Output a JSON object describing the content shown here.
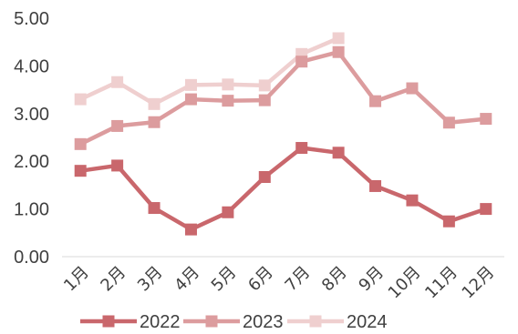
{
  "chart_data": {
    "type": "line",
    "title": "",
    "xlabel": "",
    "ylabel": "",
    "categories": [
      "1月",
      "2月",
      "3月",
      "4月",
      "5月",
      "6月",
      "7月",
      "8月",
      "9月",
      "10月",
      "11月",
      "12月"
    ],
    "y_ticks": [
      "0.00",
      "1.00",
      "2.00",
      "3.00",
      "4.00",
      "5.00"
    ],
    "ylim": [
      0,
      5
    ],
    "grid": false,
    "legend_position": "bottom",
    "series": [
      {
        "name": "2022",
        "color": "#c9676c",
        "values": [
          1.8,
          1.91,
          1.02,
          0.57,
          0.93,
          1.67,
          2.28,
          2.18,
          1.48,
          1.18,
          0.74,
          1.0
        ]
      },
      {
        "name": "2023",
        "color": "#dc9c9e",
        "values": [
          2.36,
          2.74,
          2.82,
          3.3,
          3.27,
          3.28,
          4.09,
          4.29,
          3.26,
          3.53,
          2.81,
          2.89
        ]
      },
      {
        "name": "2024",
        "color": "#efcfcf",
        "values": [
          3.3,
          3.66,
          3.2,
          3.6,
          3.61,
          3.59,
          4.25,
          4.58,
          null,
          null,
          null,
          null
        ]
      }
    ]
  }
}
